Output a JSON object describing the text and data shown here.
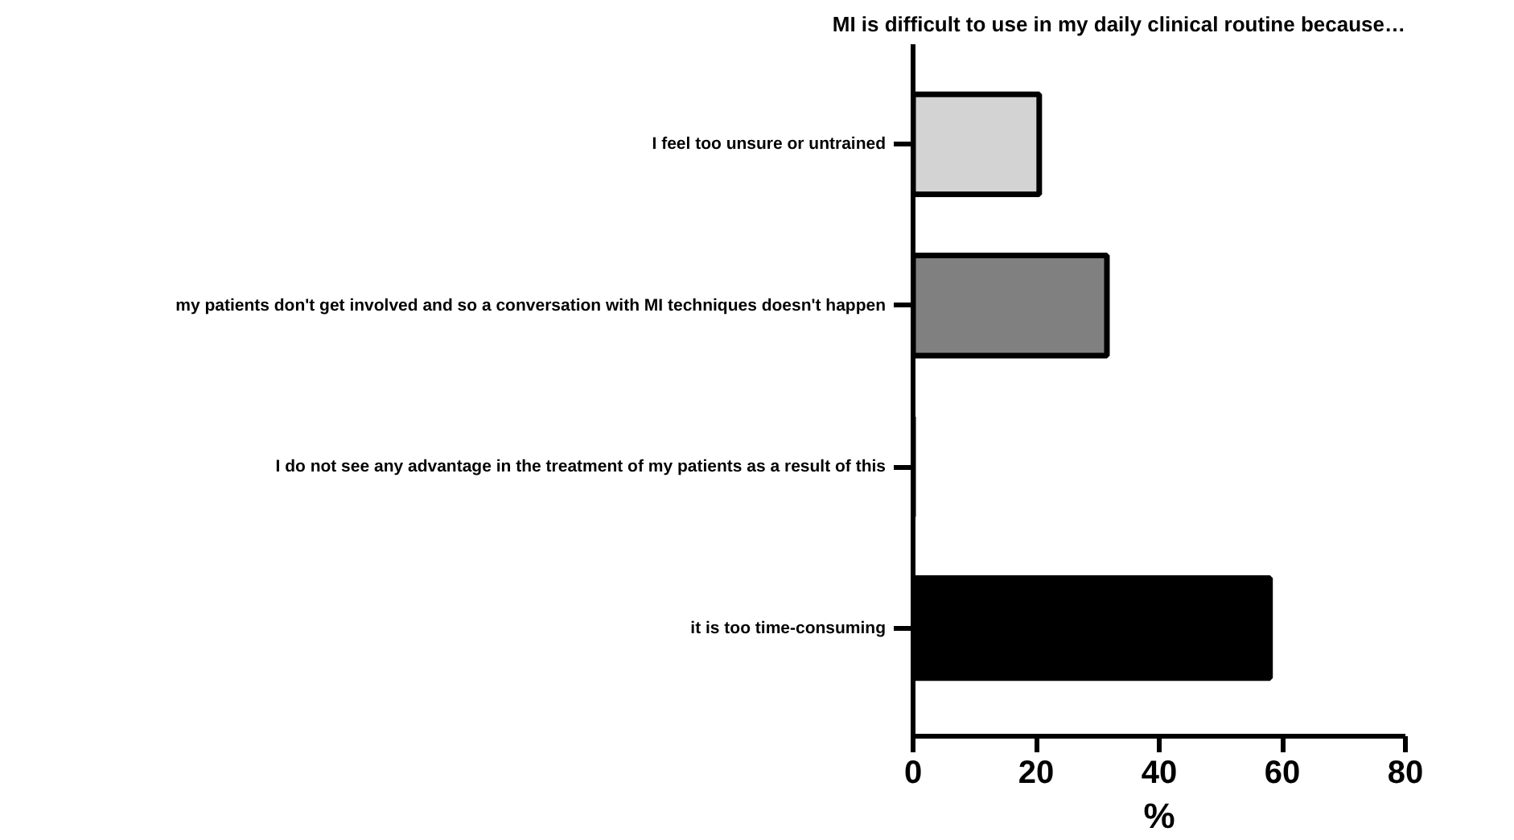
{
  "chart_data": {
    "type": "bar",
    "orientation": "horizontal",
    "title": "MI is difficult to use in my daily clinical routine because…",
    "xlabel": "%",
    "categories": [
      "I feel too unsure or untrained",
      "my patients don't get involved and so a conversation with MI techniques doesn't happen",
      "I do not see any advantage in the treatment of my patients as a result of this",
      "it is too time-consuming"
    ],
    "values": [
      20.5,
      31.5,
      0,
      58
    ],
    "colors": [
      "#d3d3d3",
      "#808080",
      "#000000",
      "#000000"
    ],
    "xlim": [
      0,
      80
    ],
    "xticks": [
      0,
      20,
      40,
      60,
      80
    ],
    "grid": false
  }
}
